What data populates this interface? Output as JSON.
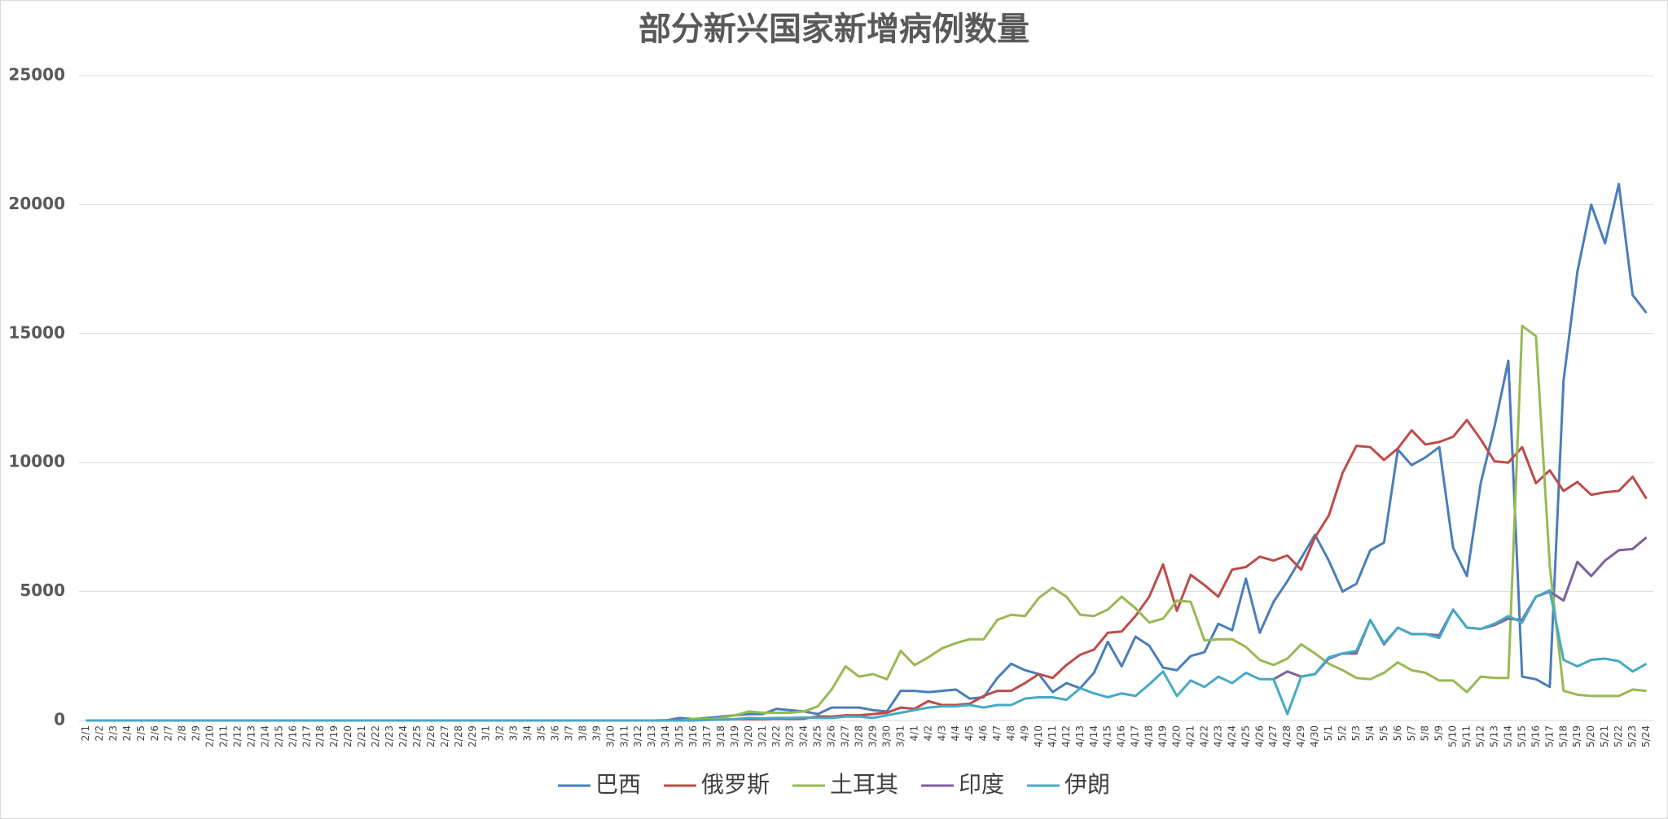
{
  "chart_data": {
    "type": "line",
    "title": "部分新兴国家新增病例数量",
    "categories": [
      "2/1",
      "2/2",
      "2/3",
      "2/4",
      "2/5",
      "2/6",
      "2/7",
      "2/8",
      "2/9",
      "2/10",
      "2/11",
      "2/12",
      "2/13",
      "2/14",
      "2/15",
      "2/16",
      "2/17",
      "2/18",
      "2/19",
      "2/20",
      "2/21",
      "2/22",
      "2/23",
      "2/24",
      "2/25",
      "2/26",
      "2/27",
      "2/28",
      "2/29",
      "3/1",
      "3/2",
      "3/3",
      "3/4",
      "3/5",
      "3/6",
      "3/7",
      "3/8",
      "3/9",
      "3/10",
      "3/11",
      "3/12",
      "3/13",
      "3/14",
      "3/15",
      "3/16",
      "3/17",
      "3/18",
      "3/19",
      "3/20",
      "3/21",
      "3/22",
      "3/23",
      "3/24",
      "3/25",
      "3/26",
      "3/27",
      "3/28",
      "3/29",
      "3/30",
      "3/31",
      "4/1",
      "4/2",
      "4/3",
      "4/4",
      "4/5",
      "4/6",
      "4/7",
      "4/8",
      "4/9",
      "4/10",
      "4/11",
      "4/12",
      "4/13",
      "4/14",
      "4/15",
      "4/16",
      "4/17",
      "4/18",
      "4/19",
      "4/20",
      "4/21",
      "4/22",
      "4/23",
      "4/24",
      "4/25",
      "4/26",
      "4/27",
      "4/28",
      "4/29",
      "4/30",
      "5/1",
      "5/2",
      "5/3",
      "5/4",
      "5/5",
      "5/6",
      "5/7",
      "5/8",
      "5/9",
      "5/10",
      "5/11",
      "5/12",
      "5/13",
      "5/14",
      "5/15",
      "5/16",
      "5/17",
      "5/18",
      "5/19",
      "5/20",
      "5/21",
      "5/22",
      "5/23",
      "5/24"
    ],
    "series": [
      {
        "name": "巴西",
        "color": "#4a7ebb",
        "values": [
          0,
          0,
          0,
          0,
          0,
          0,
          0,
          0,
          0,
          0,
          0,
          0,
          0,
          0,
          0,
          0,
          0,
          0,
          0,
          0,
          0,
          0,
          0,
          0,
          0,
          0,
          0,
          0,
          0,
          0,
          0,
          0,
          0,
          0,
          0,
          0,
          0,
          0,
          0,
          0,
          0,
          0,
          0,
          100,
          50,
          100,
          150,
          200,
          250,
          250,
          450,
          400,
          350,
          250,
          500,
          500,
          500,
          400,
          350,
          1150,
          1150,
          1100,
          1150,
          1200,
          850,
          900,
          1650,
          2200,
          1950,
          1800,
          1100,
          1450,
          1250,
          1850,
          3050,
          2100,
          3250,
          2900,
          2050,
          1950,
          2500,
          2650,
          3750,
          3500,
          5500,
          3400,
          4600,
          5400,
          6300,
          7200,
          6200,
          5000,
          5300,
          6600,
          6900,
          10500,
          9900,
          10200,
          10600,
          6700,
          5600,
          9200,
          11400,
          13950,
          1700,
          1600,
          1300,
          13200,
          17400,
          20000,
          18500,
          20800,
          16500,
          15800
        ]
      },
      {
        "name": "俄罗斯",
        "color": "#be4b48",
        "values": [
          0,
          0,
          0,
          0,
          0,
          0,
          0,
          0,
          0,
          0,
          0,
          0,
          0,
          0,
          0,
          0,
          0,
          0,
          0,
          0,
          0,
          0,
          0,
          0,
          0,
          0,
          0,
          0,
          0,
          0,
          0,
          0,
          0,
          0,
          0,
          0,
          0,
          0,
          0,
          0,
          0,
          0,
          10,
          10,
          20,
          30,
          30,
          50,
          50,
          50,
          70,
          60,
          70,
          160,
          150,
          200,
          200,
          250,
          300,
          500,
          450,
          750,
          600,
          600,
          650,
          950,
          1150,
          1150,
          1450,
          1800,
          1650,
          2150,
          2550,
          2750,
          3400,
          3450,
          4050,
          4800,
          6050,
          4250,
          5650,
          5250,
          4800,
          5850,
          5950,
          6350,
          6200,
          6400,
          5850,
          7100,
          7950,
          9600,
          10650,
          10600,
          10100,
          10550,
          11250,
          10700,
          10800,
          11000,
          11650,
          10900,
          10050,
          10000,
          10600,
          9200,
          9700,
          8900,
          9250,
          8750,
          8850,
          8900,
          9450,
          8600
        ]
      },
      {
        "name": "土耳其",
        "color": "#98b954",
        "values": [
          0,
          0,
          0,
          0,
          0,
          0,
          0,
          0,
          0,
          0,
          0,
          0,
          0,
          0,
          0,
          0,
          0,
          0,
          0,
          0,
          0,
          0,
          0,
          0,
          0,
          0,
          0,
          0,
          0,
          0,
          0,
          0,
          0,
          0,
          0,
          0,
          0,
          0,
          0,
          0,
          0,
          0,
          0,
          0,
          50,
          50,
          100,
          200,
          350,
          300,
          300,
          300,
          350,
          550,
          1200,
          2100,
          1700,
          1800,
          1600,
          2700,
          2150,
          2450,
          2800,
          3000,
          3150,
          3150,
          3900,
          4100,
          4050,
          4750,
          5150,
          4800,
          4100,
          4050,
          4300,
          4800,
          4350,
          3800,
          3950,
          4650,
          4600,
          3100,
          3150,
          3150,
          2850,
          2350,
          2150,
          2400,
          2950,
          2600,
          2200,
          1950,
          1650,
          1600,
          1850,
          2250,
          1950,
          1850,
          1550,
          1550,
          1100,
          1700,
          1650,
          1650,
          15300,
          14900,
          6000,
          1150,
          1000,
          950,
          950,
          950,
          1200,
          1150
        ]
      },
      {
        "name": "印度",
        "color": "#7d60a0",
        "values": [
          null,
          null,
          null,
          null,
          null,
          null,
          null,
          null,
          null,
          null,
          null,
          null,
          null,
          null,
          null,
          null,
          null,
          null,
          null,
          null,
          null,
          null,
          null,
          null,
          null,
          null,
          null,
          null,
          null,
          null,
          null,
          null,
          null,
          null,
          null,
          null,
          null,
          null,
          null,
          null,
          null,
          null,
          null,
          null,
          null,
          null,
          null,
          null,
          null,
          null,
          null,
          null,
          null,
          null,
          null,
          null,
          null,
          null,
          null,
          null,
          null,
          null,
          null,
          null,
          null,
          null,
          null,
          null,
          null,
          null,
          null,
          null,
          null,
          null,
          null,
          null,
          null,
          null,
          null,
          null,
          null,
          null,
          null,
          null,
          null,
          null,
          1600,
          1900,
          1700,
          1800,
          2400,
          2600,
          2600,
          3900,
          2950,
          3600,
          3350,
          3350,
          3300,
          4300,
          3600,
          3550,
          3700,
          3950,
          3900,
          4800,
          5000,
          4650,
          6150,
          5600,
          6200,
          6600,
          6650,
          7100
        ]
      },
      {
        "name": "伊朗",
        "color": "#46aac5",
        "values": [
          0,
          0,
          0,
          0,
          0,
          0,
          0,
          0,
          0,
          0,
          0,
          0,
          0,
          0,
          0,
          0,
          0,
          0,
          0,
          0,
          0,
          0,
          0,
          0,
          0,
          0,
          0,
          0,
          0,
          0,
          0,
          0,
          0,
          0,
          0,
          0,
          0,
          0,
          0,
          0,
          0,
          0,
          0,
          0,
          0,
          20,
          30,
          50,
          100,
          80,
          100,
          100,
          120,
          100,
          100,
          150,
          150,
          100,
          200,
          300,
          400,
          500,
          550,
          550,
          600,
          500,
          600,
          600,
          850,
          900,
          900,
          800,
          1250,
          1050,
          900,
          1050,
          950,
          1400,
          1900,
          950,
          1550,
          1300,
          1700,
          1450,
          1850,
          1600,
          1600,
          250,
          1700,
          1800,
          2450,
          2600,
          2700,
          3900,
          3000,
          3600,
          3350,
          3350,
          3200,
          4300,
          3600,
          3550,
          3750,
          4050,
          3800,
          4800,
          5050,
          2350,
          2100,
          2350,
          2400,
          2300,
          1900,
          2200
        ]
      }
    ],
    "ylim": [
      0,
      25000
    ],
    "yticks": [
      0,
      5000,
      10000,
      15000,
      20000,
      25000
    ],
    "grid": true,
    "legend": "bottom"
  }
}
